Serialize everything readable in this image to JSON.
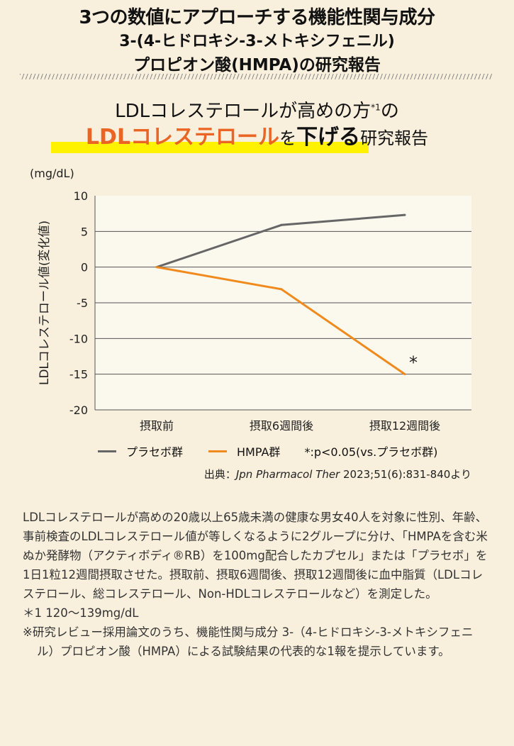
{
  "header": {
    "line1": "3つの数値にアプローチする機能性関与成分",
    "line2": "3-(4-ヒドロキシ-3-メトキシフェニル)",
    "line3": "プロピオン酸(HMPA)の研究報告"
  },
  "subtitle": {
    "line1": "LDLコレステロールが高めの方",
    "sup": "*1",
    "line1_end": "の",
    "highlight": "LDLコレステロール",
    "mid": "を",
    "bold": "下げる",
    "end": "研究報告"
  },
  "chart_data": {
    "type": "line",
    "unit": "(mg/dL)",
    "ylabel": "LDLコレステロール値(変化値)",
    "ylim": [
      -20,
      10
    ],
    "yticks": [
      10,
      5,
      0,
      -5,
      -10,
      -15,
      -20
    ],
    "grid": true,
    "categories": [
      "摂取前",
      "摂取6週間後",
      "摂取12週間後"
    ],
    "series": [
      {
        "name": "プラセボ群",
        "color": "#666666",
        "values": [
          0,
          5.9,
          7.3
        ]
      },
      {
        "name": "HMPA群",
        "color": "#f08a1c",
        "values": [
          0,
          -3.1,
          -15
        ]
      }
    ],
    "annotation": "*",
    "significance": "*:p<0.05(vs.プラセボ群)"
  },
  "source": {
    "prefix": "出典：",
    "journal": "Jpn Pharmacol Ther",
    "rest": " 2023;51(6):831-840より"
  },
  "body": {
    "text": "LDLコレステロールが高めの20歳以上65歳未満の健康な男女40人を対象に性別、年齢、事前検査のLDLコレステロール値が等しくなるように2グループに分け、「HMPAを含む米ぬか発酵物（アクティボディ®RB）を100mg配合したカプセル」または「プラセボ」を1日1粒12週間摂取させた。摂取前、摂取6週間後、摂取12週間後に血中脂質（LDLコレステロール、総コレステロール、Non-HDLコレステロールなど）を測定した。",
    "note1": "＊1 120〜139mg/dL",
    "note2": "※研究レビュー採用論文のうち、機能性関与成分 3-（4-ヒドロキシ-3-メトキシフェニル）プロピオン酸（HMPA）による試験結果の代表的な1報を提示しています。"
  }
}
